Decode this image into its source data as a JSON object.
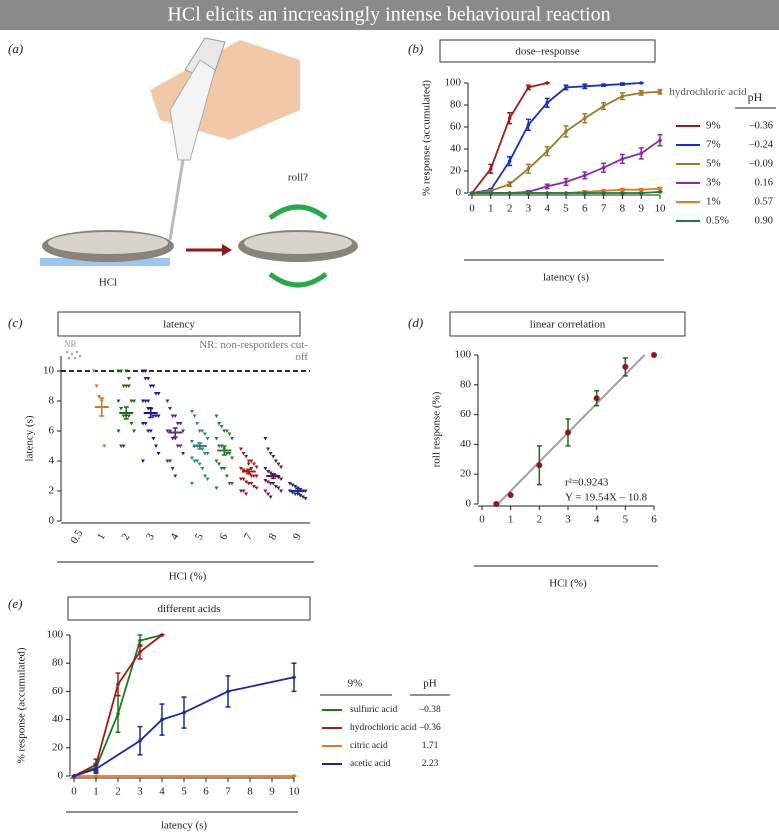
{
  "title": "HCl elicits an increasingly intense behavioural reaction",
  "panel_a": {
    "label": "(a)",
    "stimulus": "HCl",
    "question": "roll?"
  },
  "chart_data": [
    {
      "type": "line",
      "panel": "(b)",
      "title": "dose–response",
      "x_label": "latency (s)",
      "y_label": "% response (accumulated)",
      "xlim": [
        0,
        10
      ],
      "xticks": [
        0,
        1,
        2,
        3,
        4,
        5,
        6,
        7,
        8,
        9,
        10
      ],
      "ylim": [
        0,
        100
      ],
      "yticks": [
        0,
        20,
        40,
        60,
        80,
        100
      ],
      "legend_title": "hydrochloric acid",
      "legend_value_header": "pH",
      "series": [
        {
          "name": "9%",
          "color": "#a01c1c",
          "ph": "–0.36",
          "x": [
            0,
            1,
            2,
            3,
            4
          ],
          "values": [
            0,
            22,
            68,
            96,
            100
          ],
          "errors": [
            0,
            4,
            5,
            2,
            0
          ]
        },
        {
          "name": "7%",
          "color": "#1a2fbf",
          "ph": "–0.24",
          "x": [
            0,
            1,
            2,
            3,
            4,
            5,
            6,
            7,
            8,
            9
          ],
          "values": [
            0,
            3,
            29,
            62,
            82,
            96,
            97,
            98,
            99,
            100
          ],
          "errors": [
            0,
            1,
            4,
            5,
            4,
            2,
            2,
            1,
            1,
            0
          ]
        },
        {
          "name": "5%",
          "color": "#9a7a2a",
          "ph": "–0.09",
          "x": [
            0,
            1,
            2,
            3,
            4,
            5,
            6,
            7,
            8,
            9,
            10
          ],
          "values": [
            0,
            2,
            8,
            22,
            38,
            56,
            68,
            79,
            88,
            91,
            92
          ],
          "errors": [
            0,
            1,
            2,
            4,
            4,
            5,
            4,
            3,
            3,
            2,
            2
          ]
        },
        {
          "name": "3%",
          "color": "#8a2ca0",
          "ph": "0.16",
          "x": [
            0,
            1,
            2,
            3,
            4,
            5,
            6,
            7,
            8,
            9,
            10
          ],
          "values": [
            0,
            0,
            0,
            1,
            6,
            10,
            16,
            23,
            31,
            36,
            48
          ],
          "errors": [
            0,
            0,
            0,
            1,
            2,
            3,
            3,
            4,
            4,
            5,
            5
          ]
        },
        {
          "name": "1%",
          "color": "#e87722",
          "ph": "0.57",
          "x": [
            0,
            1,
            2,
            3,
            4,
            5,
            6,
            7,
            8,
            9,
            10
          ],
          "values": [
            0,
            0,
            0,
            0,
            0,
            0,
            1,
            2,
            3,
            3,
            4
          ],
          "errors": [
            0,
            0,
            0,
            0,
            0,
            0,
            1,
            1,
            1,
            1,
            1
          ]
        },
        {
          "name": "0.5%",
          "color": "#1a7a3a",
          "ph": "0.90",
          "x": [
            0,
            1,
            2,
            3,
            4,
            5,
            6,
            7,
            8,
            9,
            10
          ],
          "values": [
            0,
            0,
            0,
            0,
            0,
            0,
            0,
            0,
            0,
            0,
            1
          ],
          "errors": [
            0,
            0,
            0,
            0,
            0,
            0,
            0,
            0,
            0,
            0,
            0
          ]
        }
      ]
    },
    {
      "type": "strip",
      "panel": "(c)",
      "title": "latency",
      "x_label": "HCl (%)",
      "y_label": "latency (s)",
      "annotation": "NR: non-responders cut-off",
      "nr_label": "NR",
      "cutoff": 10,
      "ylim": [
        0,
        11
      ],
      "yticks": [
        0,
        2,
        4,
        6,
        8,
        10
      ],
      "categories": [
        "0.5",
        "1",
        "2",
        "3",
        "4",
        "5",
        "6",
        "7",
        "8",
        "9"
      ],
      "colors": [
        "#999999",
        "#c87a20",
        "#1a6a1a",
        "#1a1a8a",
        "#5a2a7a",
        "#2a8a7a",
        "#2a7a2a",
        "#a01c1c",
        "#5a1a5a",
        "#1a2a8a"
      ],
      "means": [
        null,
        7.6,
        7.2,
        7.2,
        5.9,
        5.0,
        4.7,
        3.3,
        3.0,
        2.0
      ],
      "errors": [
        null,
        0.6,
        0.4,
        0.3,
        0.3,
        0.2,
        0.3,
        0.15,
        0.15,
        0.15
      ],
      "points": [
        [],
        [
          10,
          9,
          8.3,
          8,
          5
        ],
        [
          10,
          10,
          9,
          9,
          9,
          8,
          8,
          8,
          7.5,
          7,
          7,
          7,
          6.5,
          6,
          6,
          5,
          5,
          10,
          9.5
        ],
        [
          10,
          10,
          9.5,
          9,
          9,
          8.5,
          8.5,
          8,
          8,
          7.5,
          7.5,
          7,
          7,
          7,
          6.5,
          6.5,
          6,
          6,
          5.5,
          5,
          4.5,
          4,
          9.5,
          8
        ],
        [
          8,
          7.5,
          7,
          7,
          6.5,
          6.5,
          6,
          6,
          6,
          5.5,
          5.5,
          5,
          5,
          4.5,
          4,
          4,
          3.5,
          3
        ],
        [
          7.3,
          7,
          6.5,
          6,
          6,
          5.8,
          5.5,
          5.3,
          5,
          5,
          5,
          4.8,
          4.5,
          4.5,
          4.2,
          4,
          4,
          3.8,
          3.5,
          3,
          2.8,
          2.5
        ],
        [
          7,
          6.5,
          6.3,
          6,
          6,
          5.8,
          5.5,
          5.5,
          5,
          5,
          4.8,
          4.5,
          4.5,
          4.2,
          4,
          3.8,
          3.5,
          3.5,
          3,
          2.5,
          2.5,
          2.2
        ],
        [
          4.8,
          4.5,
          4.3,
          4,
          4,
          3.8,
          3.6,
          3.5,
          3.4,
          3.3,
          3.2,
          3,
          3,
          3,
          2.8,
          2.8,
          2.6,
          2.5,
          2.5,
          2.3,
          2.2,
          2,
          2,
          1.8,
          3.8,
          3.5
        ],
        [
          5.5,
          4.8,
          4.5,
          4.3,
          4,
          3.8,
          3.6,
          3.5,
          3.3,
          3.2,
          3,
          3,
          2.9,
          2.8,
          2.7,
          2.6,
          2.5,
          2.5,
          2.3,
          2.2,
          2,
          2,
          1.8,
          1.6
        ],
        [
          2.5,
          2.4,
          2.3,
          2.2,
          2.1,
          2,
          2,
          2,
          1.9,
          1.8,
          1.8,
          1.7,
          1.6,
          1.5
        ]
      ]
    },
    {
      "type": "scatter",
      "panel": "(d)",
      "title": "linear correlation",
      "x_label": "HCl (%)",
      "y_label": "roll response (%)",
      "xlim": [
        0,
        6
      ],
      "xticks": [
        0,
        1,
        2,
        3,
        4,
        5,
        6
      ],
      "ylim": [
        0,
        100
      ],
      "yticks": [
        0,
        20,
        40,
        60,
        80,
        100
      ],
      "x": [
        0.5,
        1,
        2,
        3,
        4,
        5,
        6
      ],
      "values": [
        0,
        6,
        26,
        48,
        71,
        92,
        100
      ],
      "errors": [
        0,
        0,
        13,
        9,
        5,
        6,
        0
      ],
      "color": "#8b1a1a",
      "error_color": "#1a6a1a",
      "fit_color": "#a89aa8",
      "fit": {
        "slope": 19.54,
        "intercept": -10.8
      },
      "r_squared_text": "r²=0.9243",
      "equation_text": "Y = 19.54X – 10.8"
    },
    {
      "type": "line",
      "panel": "(e)",
      "title": "different acids",
      "x_label": "latency (s)",
      "y_label": "% response (accumulated)",
      "xlim": [
        0,
        10
      ],
      "xticks": [
        0,
        1,
        2,
        3,
        4,
        5,
        6,
        7,
        8,
        9,
        10
      ],
      "ylim": [
        0,
        100
      ],
      "yticks": [
        0,
        20,
        40,
        60,
        80,
        100
      ],
      "legend_title": "9%",
      "legend_value_header": "pH",
      "series": [
        {
          "name": "sulfuric acid",
          "color": "#1a7a1a",
          "ph": "–0.38",
          "x": [
            0,
            1,
            2,
            3,
            4
          ],
          "values": [
            0,
            6,
            44,
            96,
            100
          ],
          "errors": [
            0,
            3,
            13,
            4,
            0
          ]
        },
        {
          "name": "hydrochloric acid",
          "color": "#a01c1c",
          "ph": "–0.36",
          "x": [
            0,
            1,
            2,
            3,
            4
          ],
          "values": [
            0,
            8,
            65,
            88,
            100
          ],
          "errors": [
            0,
            4,
            8,
            5,
            0
          ]
        },
        {
          "name": "citric acid",
          "color": "#e87722",
          "ph": "1.71",
          "x": [
            0,
            1,
            10
          ],
          "values": [
            0,
            0,
            0
          ],
          "errors": [
            0,
            0,
            0
          ]
        },
        {
          "name": "acetic acid",
          "color": "#1a2a9a",
          "ph": "2.23",
          "x": [
            0,
            1,
            3,
            4,
            5,
            7,
            10
          ],
          "values": [
            0,
            5,
            25,
            40,
            45,
            60,
            70
          ],
          "errors": [
            0,
            3,
            10,
            11,
            11,
            11,
            10
          ]
        }
      ]
    }
  ]
}
